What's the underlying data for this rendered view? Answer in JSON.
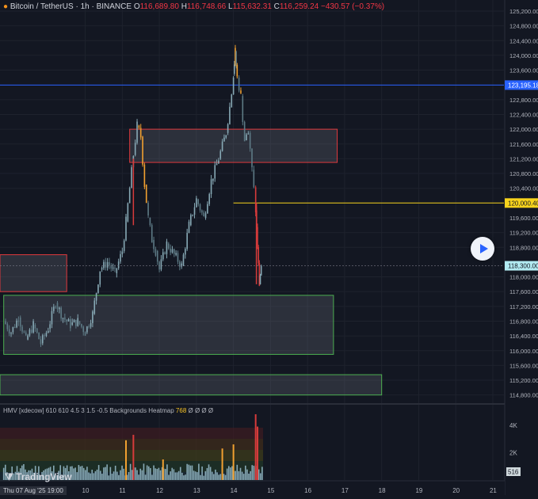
{
  "header": {
    "symbol": "Bitcoin / TetherUS · 1h · BINANCE",
    "o_label": "O",
    "o_value": "116,689.80",
    "h_label": "H",
    "h_value": "116,748.66",
    "l_label": "L",
    "l_value": "115,632.31",
    "c_label": "C",
    "c_value": "116,259.24",
    "change": "−430.57 (−0.37%)"
  },
  "indicator": {
    "title": "HMV [xdecow] 610 610 4.5 3 1.5 -0.5 Backgrounds Heatmap",
    "value": "768",
    "extras": "Ø Ø Ø Ø"
  },
  "branding": {
    "logo_text": "TradingView"
  },
  "crosshair_date": "Thu 07 Aug '25   19:00",
  "colors": {
    "background": "#131722",
    "up": "#87a9b5",
    "up_highlight": "#f0a030",
    "down": "#d63b3b",
    "red_box": "#e0393d",
    "green_box": "#4caf50",
    "blue_line": "#2962ff",
    "yellow_line": "#f7d31c"
  },
  "price_axis": {
    "ticks": [
      "125,200.00",
      "124,800.00",
      "124,400.00",
      "124,000.00",
      "123,600.00",
      "122,800.00",
      "122,400.00",
      "122,000.00",
      "121,600.00",
      "121,200.00",
      "120,800.00",
      "120,400.00",
      "119,600.00",
      "119,200.00",
      "118,800.00",
      "118,000.00",
      "117,600.00",
      "117,200.00",
      "116,800.00",
      "116,400.00",
      "116,000.00",
      "115,600.00",
      "115,200.00",
      "114,800.00"
    ],
    "ylim": [
      114600,
      125500
    ]
  },
  "price_labels": [
    {
      "text": "123,195.18",
      "price": 123195.18,
      "color": "#2962ff",
      "text_color": "#ffffff"
    },
    {
      "text": "120,000.40",
      "price": 120000.4,
      "color": "#f7d31c",
      "text_color": "#131722"
    },
    {
      "text": "118,300.00",
      "price": 118300,
      "color": "#b2ebf2",
      "text_color": "#131722"
    }
  ],
  "volume_axis": {
    "ticks": [
      "4K",
      "2K"
    ],
    "current": "516"
  },
  "time_axis": {
    "ticks": [
      "10",
      "11",
      "12",
      "13",
      "14",
      "15",
      "16",
      "17",
      "18",
      "19",
      "20",
      "21"
    ]
  },
  "chart_data": {
    "type": "candlestick",
    "title": "Bitcoin / TetherUS · 1h · BINANCE",
    "x_unit": "day of August 2025",
    "y_unit": "USDT",
    "ylim": [
      114600,
      125500
    ],
    "xlim": [
      7.7,
      21.3
    ],
    "horizontal_lines": [
      {
        "price": 123195.18,
        "color": "#2962ff"
      },
      {
        "price": 120000.4,
        "color": "#f7d31c",
        "from_day": 14.0
      }
    ],
    "zones": [
      {
        "kind": "supply",
        "color": "#e0393d",
        "from_day": 11.2,
        "to_day": 16.8,
        "top": 122000,
        "bottom": 121100
      },
      {
        "kind": "supply",
        "color": "#e0393d",
        "from_day": 7.7,
        "to_day": 9.5,
        "top": 118600,
        "bottom": 117600
      },
      {
        "kind": "demand",
        "color": "#4caf50",
        "from_day": 7.8,
        "to_day": 16.7,
        "top": 117500,
        "bottom": 115900
      },
      {
        "kind": "demand",
        "color": "#4caf50",
        "from_day": 7.7,
        "to_day": 18.0,
        "top": 115350,
        "bottom": 114800
      }
    ],
    "price_path": [
      [
        7.8,
        116800
      ],
      [
        8.0,
        116500
      ],
      [
        8.2,
        116900
      ],
      [
        8.4,
        116300
      ],
      [
        8.6,
        116700
      ],
      [
        8.8,
        116200
      ],
      [
        9.0,
        116600
      ],
      [
        9.2,
        117300
      ],
      [
        9.4,
        116900
      ],
      [
        9.6,
        116700
      ],
      [
        9.8,
        116800
      ],
      [
        10.0,
        116500
      ],
      [
        10.2,
        117000
      ],
      [
        10.4,
        118200
      ],
      [
        10.6,
        118400
      ],
      [
        10.8,
        118100
      ],
      [
        11.0,
        118700
      ],
      [
        11.1,
        119500
      ],
      [
        11.3,
        121300
      ],
      [
        11.4,
        122100
      ],
      [
        11.5,
        121800
      ],
      [
        11.6,
        120500
      ],
      [
        11.7,
        119600
      ],
      [
        11.8,
        119000
      ],
      [
        11.9,
        118700
      ],
      [
        12.0,
        118200
      ],
      [
        12.2,
        118900
      ],
      [
        12.4,
        118600
      ],
      [
        12.6,
        118300
      ],
      [
        12.8,
        119400
      ],
      [
        13.0,
        120100
      ],
      [
        13.2,
        119600
      ],
      [
        13.4,
        120600
      ],
      [
        13.6,
        121200
      ],
      [
        13.8,
        121900
      ],
      [
        13.9,
        122600
      ],
      [
        14.0,
        123500
      ],
      [
        14.05,
        124100
      ],
      [
        14.1,
        123400
      ],
      [
        14.2,
        122900
      ],
      [
        14.3,
        121700
      ],
      [
        14.4,
        121900
      ],
      [
        14.5,
        120900
      ],
      [
        14.6,
        119800
      ],
      [
        14.65,
        118800
      ],
      [
        14.7,
        117800
      ],
      [
        14.75,
        118300
      ]
    ],
    "volume_max": 4800,
    "volume_spikes": [
      {
        "day": 11.1,
        "value": 2900,
        "color": "#f0a030"
      },
      {
        "day": 11.3,
        "value": 3300,
        "color": "#d63b3b"
      },
      {
        "day": 12.1,
        "value": 1500,
        "color": "#f0a030"
      },
      {
        "day": 13.7,
        "value": 2300,
        "color": "#f0a030"
      },
      {
        "day": 14.0,
        "value": 2600,
        "color": "#f0a030"
      },
      {
        "day": 14.6,
        "value": 4800,
        "color": "#d63b3b"
      },
      {
        "day": 14.65,
        "value": 3900,
        "color": "#d63b3b"
      }
    ]
  }
}
